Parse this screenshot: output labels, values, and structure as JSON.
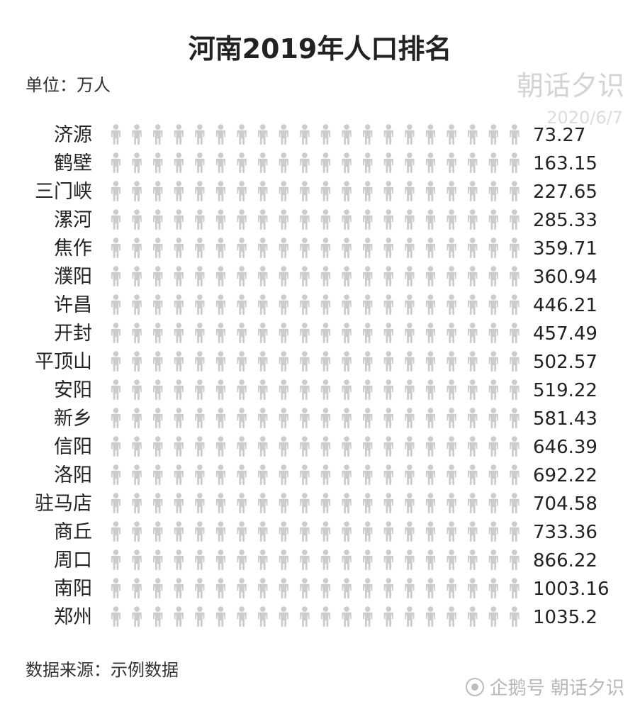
{
  "header": {
    "title": "河南2019年人口排名",
    "unit": "单位：万人"
  },
  "watermark": {
    "name": "朝话夕识",
    "date": "2020/6/7"
  },
  "footer": {
    "source": "数据来源：示例数据",
    "brand": "企鹅号 朝话夕识"
  },
  "chart_data": {
    "type": "bar",
    "style": "pictorial (person icons)",
    "title": "河南2019年人口排名",
    "unit": "万人",
    "icons_per_row": 20,
    "value_per_icon": 50,
    "empty_icon_color": "#cccccc",
    "categories": [
      "济源",
      "鹤壁",
      "三门峡",
      "漯河",
      "焦作",
      "濮阳",
      "许昌",
      "开封",
      "平顶山",
      "安阳",
      "新乡",
      "信阳",
      "洛阳",
      "驻马店",
      "商丘",
      "周口",
      "南阳",
      "郑州"
    ],
    "values": [
      73.27,
      163.15,
      227.65,
      285.33,
      359.71,
      360.94,
      446.21,
      457.49,
      502.57,
      519.22,
      581.43,
      646.39,
      692.22,
      704.58,
      733.36,
      866.22,
      1003.16,
      1035.2
    ],
    "value_labels": [
      "73.27",
      "163.15",
      "227.65",
      "285.33",
      "359.71",
      "360.94",
      "446.21",
      "457.49",
      "502.57",
      "519.22",
      "581.43",
      "646.39",
      "692.22",
      "704.58",
      "733.36",
      "866.22",
      "1003.16",
      "1035.2"
    ],
    "colors": [
      "#3f4fd1",
      "#2bab6e",
      "#ee7c32",
      "#f3a93b",
      "#f4c530",
      "#3f4fd1",
      "#4ecb8d",
      "#ee7c32",
      "#f7b04c",
      "#fbd872",
      "#b6c2fa",
      "#a3e9c4",
      "#f7b596",
      "#fad5b4",
      "#fde5b2",
      "#3f4fd1",
      "#2bab6e",
      "#ee7c32"
    ]
  }
}
